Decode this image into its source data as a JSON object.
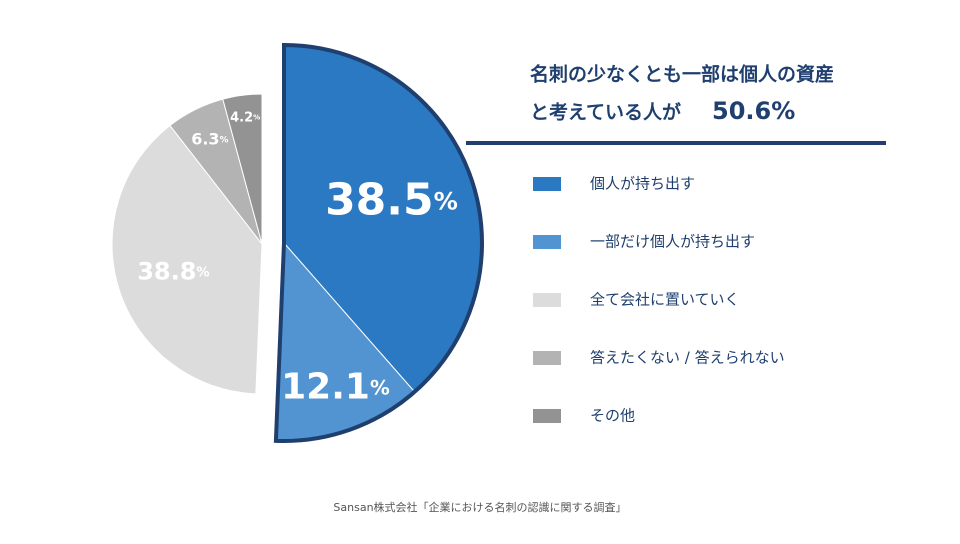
{
  "chart_data": {
    "type": "pie",
    "categories": [
      "個人が持ち出す",
      "一部だけ個人が持ち出す",
      "全て会社に置いていく",
      "答えたくない / 答えられない",
      "その他"
    ],
    "values": [
      38.5,
      12.1,
      38.8,
      6.3,
      4.2
    ],
    "value_labels": [
      "38.5%",
      "12.1%",
      "38.8%",
      "6.3%",
      "4.2%"
    ],
    "colors": [
      "#2b79c2",
      "#5294d1",
      "#dcdcdc",
      "#b3b3b3",
      "#939393"
    ],
    "annotation": {
      "line1": "名刺の少なくとも一部は個人の資産",
      "line2": "と考えている人が",
      "highlight": "50.6%"
    },
    "source": "Sansan株式会社「企業における名刺の認識に関する調査」"
  }
}
